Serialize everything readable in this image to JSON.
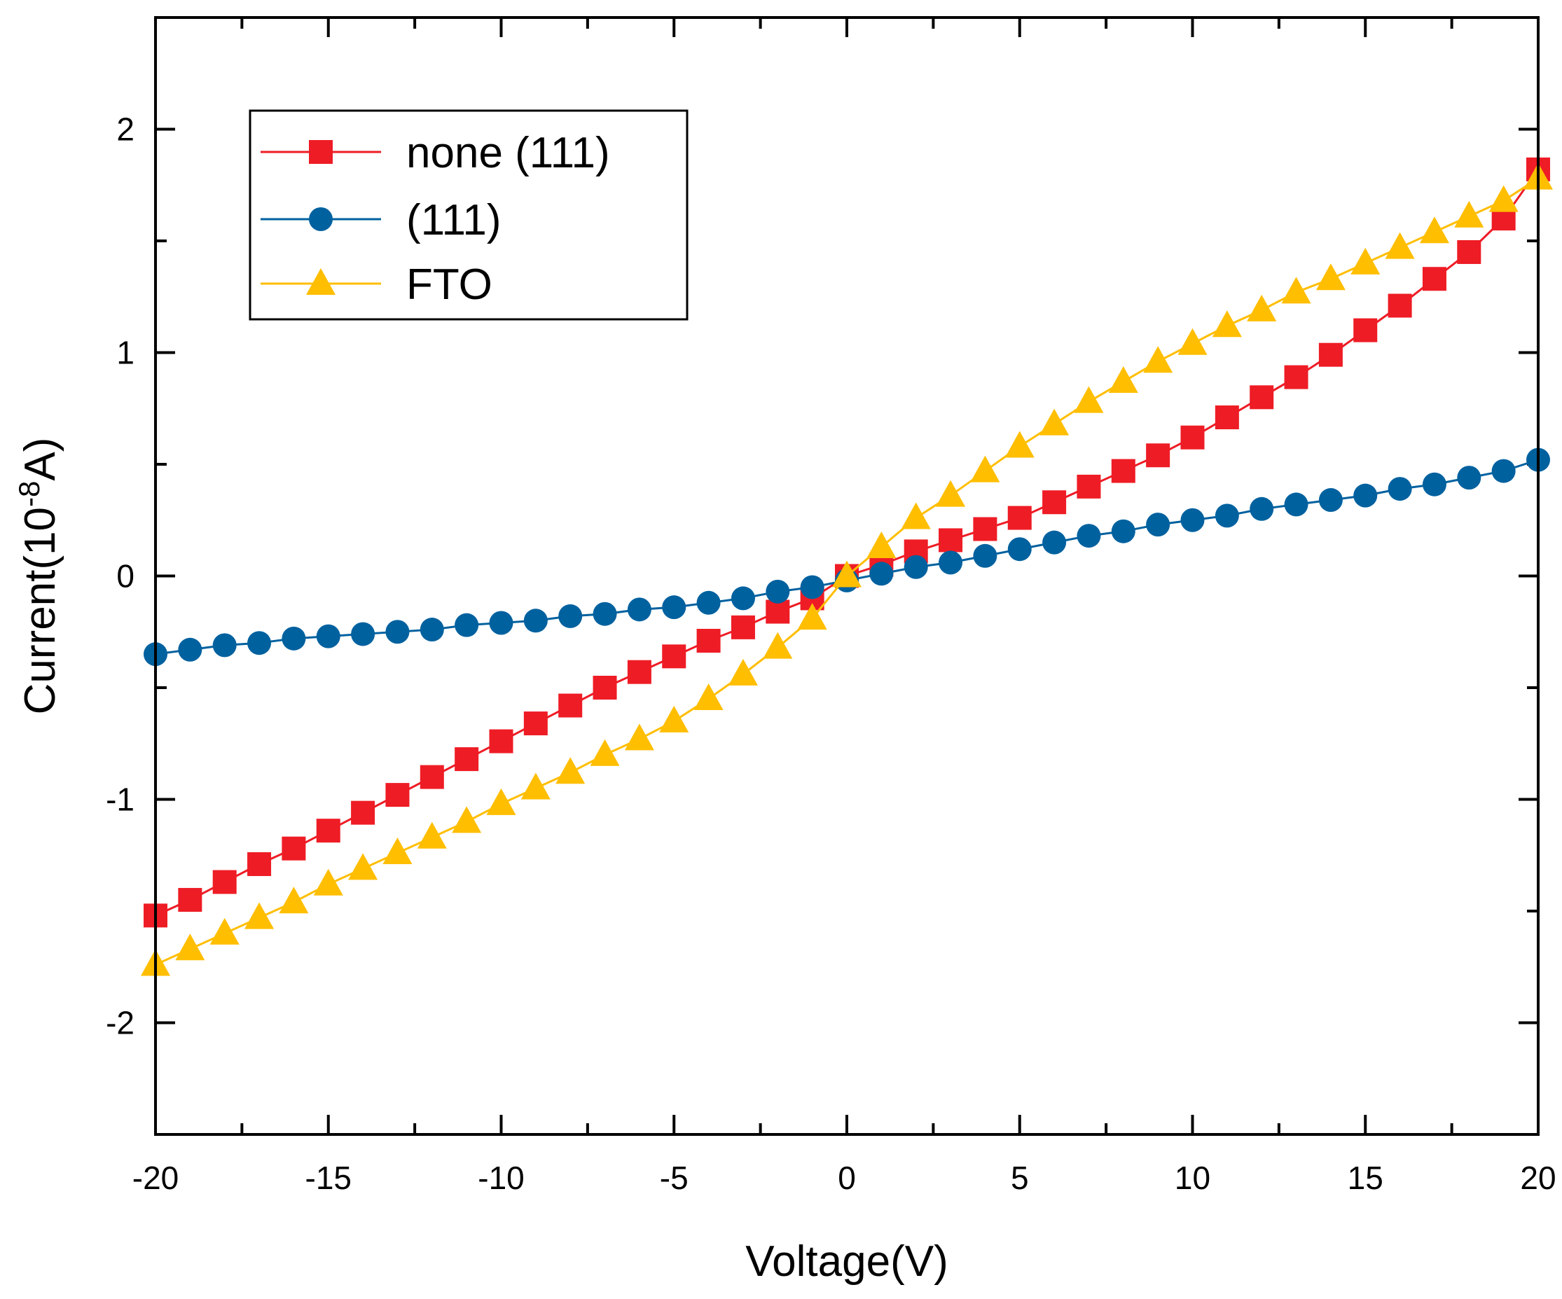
{
  "chart_data": {
    "type": "line",
    "xlabel": "Voltage(V)",
    "ylabel_prefix": "Current(10",
    "ylabel_exponent": "-8",
    "ylabel_suffix": "A)",
    "xlim": [
      -20,
      20
    ],
    "ylim": [
      -2.5,
      2.5
    ],
    "x_ticks": [
      -20,
      -15,
      -10,
      -5,
      0,
      5,
      10,
      15,
      20
    ],
    "x_tick_labels": [
      "-20",
      "-15",
      "-10",
      "-5",
      "0",
      "5",
      "10",
      "15",
      "20"
    ],
    "y_ticks": [
      -2,
      -1,
      0,
      1,
      2
    ],
    "y_tick_labels": [
      "-2",
      "-1",
      "0",
      "1",
      "2"
    ],
    "x_minor_step": 2.5,
    "y_minor_step": 0.5,
    "grid": false,
    "legend_position": "top-left",
    "x": [
      -20,
      -19,
      -18,
      -17,
      -16,
      -15,
      -14,
      -13,
      -12,
      -11,
      -10,
      -9,
      -8,
      -7,
      -6,
      -5,
      -4,
      -3,
      -2,
      -1,
      0,
      1,
      2,
      3,
      4,
      5,
      6,
      7,
      8,
      9,
      10,
      11,
      12,
      13,
      14,
      15,
      16,
      17,
      18,
      19,
      20
    ],
    "series": [
      {
        "name": "none (111)",
        "color": "#ee1c25",
        "marker": "square",
        "values": [
          -1.52,
          -1.45,
          -1.37,
          -1.29,
          -1.22,
          -1.14,
          -1.06,
          -0.98,
          -0.9,
          -0.82,
          -0.74,
          -0.66,
          -0.58,
          -0.5,
          -0.43,
          -0.36,
          -0.29,
          -0.23,
          -0.16,
          -0.1,
          0.0,
          0.05,
          0.11,
          0.16,
          0.21,
          0.26,
          0.33,
          0.4,
          0.47,
          0.54,
          0.62,
          0.71,
          0.8,
          0.89,
          0.99,
          1.1,
          1.21,
          1.33,
          1.45,
          1.6,
          1.82
        ]
      },
      {
        "name": "(111)",
        "color": "#00619f",
        "marker": "circle",
        "values": [
          -0.35,
          -0.33,
          -0.31,
          -0.3,
          -0.28,
          -0.27,
          -0.26,
          -0.25,
          -0.24,
          -0.22,
          -0.21,
          -0.2,
          -0.18,
          -0.17,
          -0.15,
          -0.14,
          -0.12,
          -0.1,
          -0.07,
          -0.05,
          -0.02,
          0.01,
          0.04,
          0.06,
          0.09,
          0.12,
          0.15,
          0.18,
          0.2,
          0.23,
          0.25,
          0.27,
          0.3,
          0.32,
          0.34,
          0.36,
          0.39,
          0.41,
          0.44,
          0.47,
          0.52
        ]
      },
      {
        "name": "FTO",
        "color": "#ffbe00",
        "marker": "triangle",
        "values": [
          -1.74,
          -1.67,
          -1.6,
          -1.53,
          -1.46,
          -1.38,
          -1.31,
          -1.24,
          -1.17,
          -1.1,
          -1.02,
          -0.95,
          -0.88,
          -0.8,
          -0.73,
          -0.65,
          -0.55,
          -0.44,
          -0.32,
          -0.19,
          0.0,
          0.13,
          0.26,
          0.36,
          0.47,
          0.58,
          0.68,
          0.78,
          0.87,
          0.96,
          1.04,
          1.12,
          1.19,
          1.27,
          1.33,
          1.4,
          1.47,
          1.54,
          1.61,
          1.68,
          1.78
        ]
      }
    ]
  }
}
